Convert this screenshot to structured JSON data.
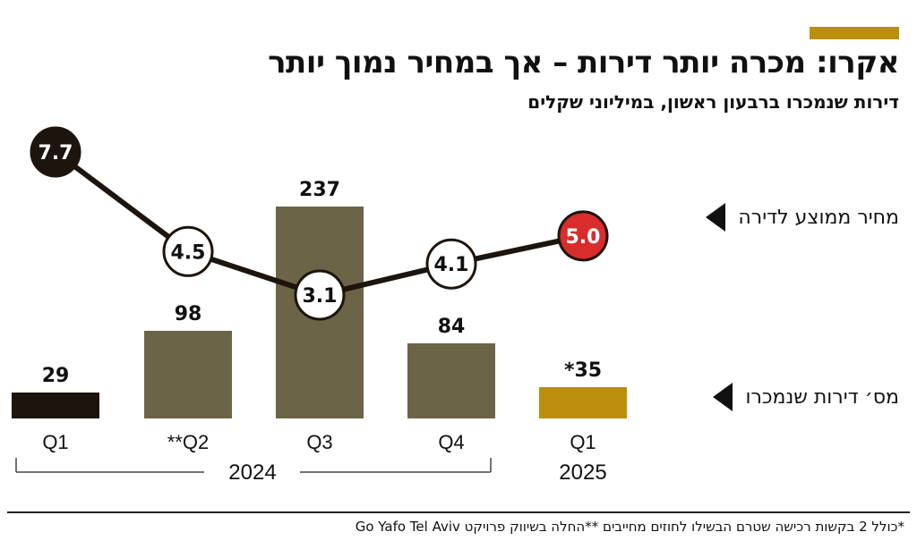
{
  "header": {
    "title": "אקרו: מכרה יותר דירות – אך במחיר נמוך יותר",
    "subtitle": "דירות שנמכרו ברבעון ראשון, במיליוני שקלים"
  },
  "legend": {
    "price_label": "מחיר ממוצע לדירה",
    "units_label": "מס׳ דירות שנמכרו"
  },
  "footnote": "*כולל 2 בקשות רכישה שטרם הבשילו לחוזים מחייבים **החלה בשיווק פרויקט Go Yafo Tel Aviv",
  "colors": {
    "bar_2024_q1": "#1c140d",
    "bar_main": "#6b6446",
    "bar_2025": "#b98f0c",
    "line": "#1c140d",
    "marker_first_fill": "#1c140d",
    "marker_last_fill": "#d92c2c",
    "marker_default_fill": "#ffffff"
  },
  "chart_data": {
    "type": "bar+line",
    "categories": [
      "Q1",
      "**Q2",
      "Q3",
      "Q4",
      "Q1"
    ],
    "groups": [
      {
        "label": "2024",
        "categories": [
          "Q1",
          "**Q2",
          "Q3",
          "Q4"
        ]
      },
      {
        "label": "2025",
        "categories": [
          "Q1"
        ]
      }
    ],
    "series": [
      {
        "name": "מס׳ דירות שנמכרו",
        "type": "bar",
        "values": [
          29,
          98,
          237,
          84,
          35
        ],
        "data_labels": [
          "29",
          "98",
          "237",
          "84",
          "*35"
        ]
      },
      {
        "name": "מחיר ממוצע לדירה",
        "type": "line",
        "values": [
          7.7,
          4.5,
          3.1,
          4.1,
          5.0
        ],
        "data_labels": [
          "7.7",
          "4.5",
          "3.1",
          "4.1",
          "5.0"
        ]
      }
    ]
  }
}
